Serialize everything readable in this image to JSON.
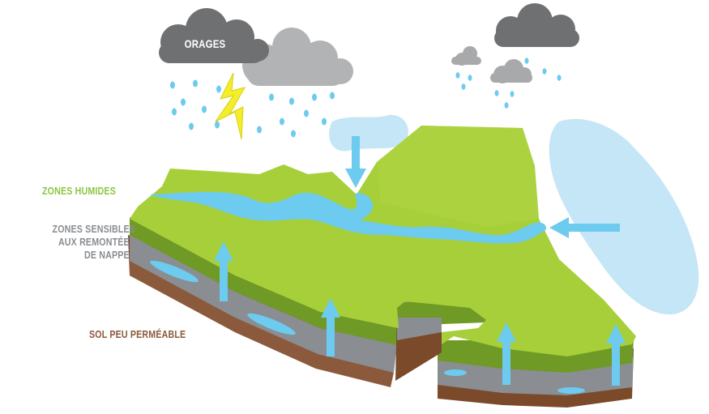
{
  "labels": {
    "orages": "ORAGES",
    "zones_humides": "ZONES HUMIDES",
    "zones_sensibles": [
      "ZONES SENSIBLES",
      "AUX REMONTÉES",
      "DE NAPPES"
    ],
    "sol": "SOL PEU PERMÉABLE"
  },
  "colors": {
    "zones_humides": "#8dc63f",
    "zones_sensibles": "#8a8d91",
    "sol": "#8b5a3c",
    "grass": "#a6cf3a",
    "water": "#6ccbee"
  },
  "icons": [
    "storm-cloud-icon",
    "cloud-icon",
    "raindrop-icon",
    "lightning-icon",
    "arrow-icon"
  ]
}
